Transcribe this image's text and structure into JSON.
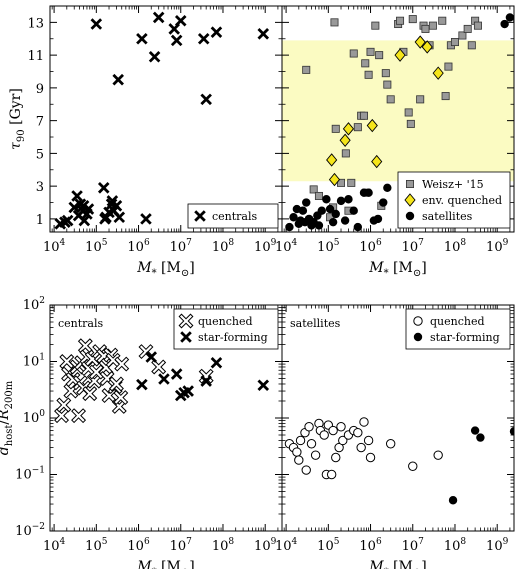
{
  "chart_data": [
    {
      "type": "scatter",
      "panel": "top-left",
      "xlabel": "M_* [M_⊙]",
      "ylabel": "τ_90 [Gyr]",
      "xscale": "log",
      "xlim": [
        8000,
        2500000000
      ],
      "ylim": [
        0.2,
        14
      ],
      "xticks": [
        "10^4",
        "10^5",
        "10^6",
        "10^7",
        "10^8",
        "10^9"
      ],
      "yticks": [
        "1",
        "3",
        "5",
        "7",
        "9",
        "11",
        "13"
      ],
      "legend_position": "lower-right",
      "series": [
        {
          "name": "centrals",
          "marker": "x-filled",
          "color": "#000000",
          "points": [
            [
              14000,
              0.7
            ],
            [
              18000,
              0.8
            ],
            [
              21000,
              0.9
            ],
            [
              30000,
              1.7
            ],
            [
              35000,
              2.4
            ],
            [
              38000,
              1.2
            ],
            [
              42000,
              1.9
            ],
            [
              48000,
              1.5
            ],
            [
              50000,
              1.8
            ],
            [
              52000,
              0.9
            ],
            [
              60000,
              1.3
            ],
            [
              65000,
              1.6
            ],
            [
              100000,
              12.9
            ],
            [
              150000,
              2.9
            ],
            [
              160000,
              1.0
            ],
            [
              170000,
              1.1
            ],
            [
              200000,
              1.4
            ],
            [
              230000,
              1.9
            ],
            [
              240000,
              2.1
            ],
            [
              260000,
              1.5
            ],
            [
              300000,
              1.8
            ],
            [
              330000,
              9.5
            ],
            [
              350000,
              1.1
            ],
            [
              1200000,
              12.0
            ],
            [
              1500000,
              1.0
            ],
            [
              2400000,
              10.9
            ],
            [
              3000000,
              13.3
            ],
            [
              7000000,
              12.6
            ],
            [
              8000000,
              11.9
            ],
            [
              10000000,
              13.1
            ],
            [
              35000000,
              12.0
            ],
            [
              40000000,
              8.3
            ],
            [
              70000000,
              12.4
            ],
            [
              900000000,
              12.3
            ]
          ]
        }
      ]
    },
    {
      "type": "scatter",
      "panel": "top-right",
      "xlabel": "M_* [M_⊙]",
      "xscale": "log",
      "xlim": [
        8000,
        2500000000
      ],
      "ylim": [
        0.2,
        14
      ],
      "xticks": [
        "10^4",
        "10^5",
        "10^6",
        "10^7",
        "10^8",
        "10^9"
      ],
      "shaded_band": {
        "ymin": 3.3,
        "ymax": 11.9,
        "color": "#fbfbc2"
      },
      "legend_position": "lower-right",
      "series": [
        {
          "name": "Weisz+ '15",
          "marker": "square",
          "color": "#999999",
          "points": [
            [
              30000,
              10.1
            ],
            [
              35000,
              0.9
            ],
            [
              45000,
              2.8
            ],
            [
              60000,
              2.4
            ],
            [
              110000,
              1.1
            ],
            [
              130000,
              1.7
            ],
            [
              140000,
              13.0
            ],
            [
              150000,
              6.5
            ],
            [
              200000,
              3.2
            ],
            [
              260000,
              5.0
            ],
            [
              300000,
              1.5
            ],
            [
              350000,
              3.2
            ],
            [
              400000,
              11.1
            ],
            [
              500000,
              6.6
            ],
            [
              600000,
              7.3
            ],
            [
              700000,
              7.3
            ],
            [
              750000,
              10.5
            ],
            [
              800000,
              2.6
            ],
            [
              900000,
              9.8
            ],
            [
              1000000,
              11.2
            ],
            [
              1300000,
              12.8
            ],
            [
              1600000,
              11.0
            ],
            [
              1800000,
              1.8
            ],
            [
              2300000,
              9.9
            ],
            [
              2500000,
              9.2
            ],
            [
              3000000,
              8.3
            ],
            [
              4500000,
              12.9
            ],
            [
              5000000,
              13.1
            ],
            [
              6000000,
              11.2
            ],
            [
              8000000,
              7.5
            ],
            [
              9000000,
              6.8
            ],
            [
              10000000,
              13.2
            ],
            [
              12000000,
              3.2
            ],
            [
              15000000,
              8.3
            ],
            [
              18000000,
              12.8
            ],
            [
              20000000,
              12.6
            ],
            [
              25000000,
              11.6
            ],
            [
              30000000,
              12.8
            ],
            [
              50000000,
              13.1
            ],
            [
              60000000,
              8.5
            ],
            [
              70000000,
              10.3
            ],
            [
              80000000,
              11.6
            ],
            [
              100000000,
              11.8
            ],
            [
              150000000,
              12.2
            ],
            [
              200000000,
              12.6
            ],
            [
              250000000,
              11.6
            ],
            [
              300000000,
              13.1
            ],
            [
              350000000,
              12.8
            ]
          ]
        },
        {
          "name": "env. quenched",
          "marker": "diamond",
          "color": "#f5e51b",
          "points": [
            [
              120000,
              4.6
            ],
            [
              140000,
              3.4
            ],
            [
              250000,
              5.8
            ],
            [
              300000,
              6.5
            ],
            [
              1100000,
              6.7
            ],
            [
              1400000,
              4.5
            ],
            [
              5000000,
              11.0
            ],
            [
              15000000,
              11.8
            ],
            [
              22000000,
              11.5
            ],
            [
              40000000,
              9.9
            ]
          ]
        },
        {
          "name": "satellites",
          "marker": "circle",
          "color": "#000000",
          "points": [
            [
              12000,
              0.5
            ],
            [
              15000,
              1.1
            ],
            [
              18000,
              1.6
            ],
            [
              20000,
              0.7
            ],
            [
              22000,
              0.9
            ],
            [
              25000,
              1.5
            ],
            [
              28000,
              0.8
            ],
            [
              30000,
              2.0
            ],
            [
              35000,
              1.0
            ],
            [
              40000,
              0.6
            ],
            [
              45000,
              0.8
            ],
            [
              55000,
              1.2
            ],
            [
              60000,
              0.6
            ],
            [
              70000,
              1.5
            ],
            [
              90000,
              2.2
            ],
            [
              110000,
              1.6
            ],
            [
              130000,
              0.8
            ],
            [
              150000,
              1.3
            ],
            [
              200000,
              2.1
            ],
            [
              250000,
              0.9
            ],
            [
              300000,
              2.2
            ],
            [
              400000,
              1.5
            ],
            [
              500000,
              0.5
            ],
            [
              700000,
              2.6
            ],
            [
              900000,
              2.6
            ],
            [
              1200000,
              0.9
            ],
            [
              1500000,
              1.0
            ],
            [
              2000000,
              2.0
            ],
            [
              2500000,
              2.9
            ],
            [
              1500000000,
              12.9
            ],
            [
              2000000000,
              13.3
            ],
            [
              3000000000,
              13.1
            ]
          ]
        }
      ]
    },
    {
      "type": "scatter",
      "panel": "bottom-left",
      "annotation": "centrals",
      "xlabel": "M_* [M_⊙]",
      "ylabel": "d_host / R_200m",
      "xscale": "log",
      "yscale": "log",
      "xlim": [
        8000,
        2500000000
      ],
      "ylim": [
        0.01,
        100
      ],
      "xticks": [
        "10^4",
        "10^5",
        "10^6",
        "10^7",
        "10^8",
        "10^9"
      ],
      "yticks": [
        "10^-2",
        "10^-1",
        "10^0",
        "10^1",
        "10^2"
      ],
      "legend_position": "top-right",
      "series": [
        {
          "name": "quenched",
          "marker": "x-open",
          "color": "#000000",
          "points": [
            [
              15000,
              1.1
            ],
            [
              17000,
              1.7
            ],
            [
              20000,
              10.0
            ],
            [
              22000,
              6.0
            ],
            [
              25000,
              3.0
            ],
            [
              28000,
              4.8
            ],
            [
              35000,
              8.0
            ],
            [
              38000,
              1.1
            ],
            [
              42000,
              4.2
            ],
            [
              45000,
              9.5
            ],
            [
              50000,
              3.4
            ],
            [
              55000,
              19.0
            ],
            [
              60000,
              12.0
            ],
            [
              65000,
              7.5
            ],
            [
              70000,
              2.7
            ],
            [
              80000,
              11.0
            ],
            [
              90000,
              4.5
            ],
            [
              100000,
              6.5
            ],
            [
              120000,
              15.0
            ],
            [
              150000,
              12.5
            ],
            [
              170000,
              7.8
            ],
            [
              180000,
              5.0
            ],
            [
              200000,
              2.5
            ],
            [
              220000,
              13.0
            ],
            [
              250000,
              10.5
            ],
            [
              280000,
              3.6
            ],
            [
              300000,
              4.0
            ],
            [
              350000,
              1.6
            ],
            [
              380000,
              2.3
            ],
            [
              400000,
              9.0
            ],
            [
              1500000,
              15.0
            ],
            [
              3000000,
              8.0
            ],
            [
              40000000,
              5.5
            ]
          ]
        },
        {
          "name": "star-forming",
          "marker": "x-filled",
          "color": "#000000",
          "points": [
            [
              1200000,
              3.9
            ],
            [
              2000000,
              12.0
            ],
            [
              4000000,
              4.9
            ],
            [
              8000000,
              6.0
            ],
            [
              10000000,
              2.5
            ],
            [
              12000000,
              2.8
            ],
            [
              15000000,
              3.0
            ],
            [
              40000000,
              4.5
            ],
            [
              70000000,
              9.5
            ],
            [
              900000000,
              3.8
            ]
          ]
        }
      ]
    },
    {
      "type": "scatter",
      "panel": "bottom-right",
      "annotation": "satellites",
      "xlabel": "M_* [M_⊙]",
      "xscale": "log",
      "yscale": "log",
      "xlim": [
        8000,
        2500000000
      ],
      "ylim": [
        0.01,
        100
      ],
      "xticks": [
        "10^4",
        "10^5",
        "10^6",
        "10^7",
        "10^8",
        "10^9"
      ],
      "legend_position": "top-right",
      "series": [
        {
          "name": "quenched",
          "marker": "circle-open",
          "color": "#000000",
          "points": [
            [
              12000,
              0.35
            ],
            [
              15000,
              0.3
            ],
            [
              18000,
              0.25
            ],
            [
              20000,
              0.18
            ],
            [
              22000,
              0.4
            ],
            [
              28000,
              0.55
            ],
            [
              30000,
              0.12
            ],
            [
              35000,
              0.7
            ],
            [
              40000,
              0.35
            ],
            [
              50000,
              0.22
            ],
            [
              60000,
              0.8
            ],
            [
              65000,
              0.6
            ],
            [
              80000,
              0.5
            ],
            [
              90000,
              0.1
            ],
            [
              100000,
              0.75
            ],
            [
              120000,
              0.1
            ],
            [
              130000,
              0.6
            ],
            [
              150000,
              0.2
            ],
            [
              180000,
              0.3
            ],
            [
              200000,
              0.7
            ],
            [
              220000,
              0.4
            ],
            [
              300000,
              0.5
            ],
            [
              400000,
              0.6
            ],
            [
              500000,
              0.55
            ],
            [
              600000,
              0.3
            ],
            [
              700000,
              0.85
            ],
            [
              900000,
              0.4
            ],
            [
              1000000,
              0.2
            ],
            [
              3000000,
              0.35
            ],
            [
              10000000,
              0.14
            ],
            [
              40000000,
              0.22
            ]
          ]
        },
        {
          "name": "star-forming",
          "marker": "circle",
          "color": "#000000",
          "points": [
            [
              90000000,
              0.035
            ],
            [
              300000000,
              0.6
            ],
            [
              400000000,
              0.45
            ],
            [
              2500000000,
              0.58
            ]
          ]
        }
      ]
    }
  ]
}
